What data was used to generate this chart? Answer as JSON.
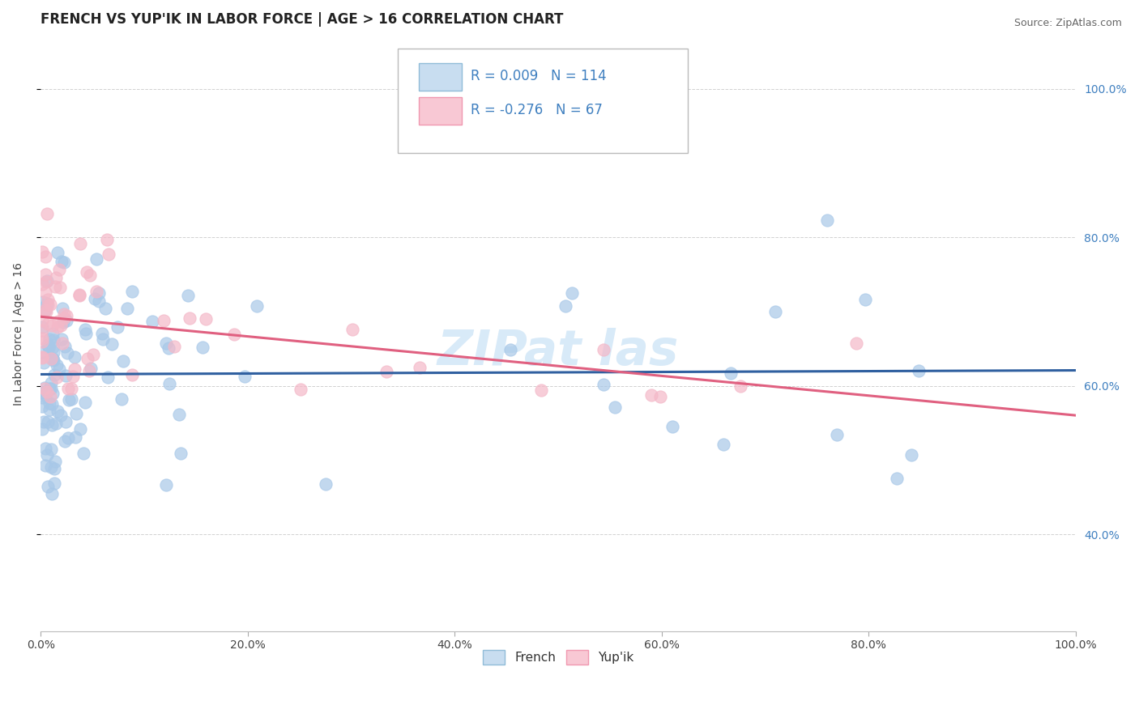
{
  "title": "FRENCH VS YUP'IK IN LABOR FORCE | AGE > 16 CORRELATION CHART",
  "source_text": "Source: ZipAtlas.com",
  "ylabel": "In Labor Force | Age > 16",
  "xmin": 0.0,
  "xmax": 1.0,
  "ymin": 0.27,
  "ymax": 1.07,
  "french_R": 0.009,
  "french_N": 114,
  "yupik_R": -0.276,
  "yupik_N": 67,
  "blue_scatter_color": "#a8c8e8",
  "pink_scatter_color": "#f4b8c8",
  "blue_line_color": "#3060a0",
  "pink_line_color": "#e06080",
  "right_axis_color": "#4080c0",
  "title_color": "#1a1a2e",
  "watermark_color": "#d8eaf8",
  "ytick_positions": [
    0.4,
    0.6,
    0.8,
    1.0
  ],
  "xtick_positions": [
    0.0,
    0.2,
    0.4,
    0.6,
    0.8,
    1.0
  ],
  "title_fontsize": 12,
  "label_fontsize": 10,
  "tick_fontsize": 10,
  "legend_fontsize": 12,
  "source_fontsize": 9
}
